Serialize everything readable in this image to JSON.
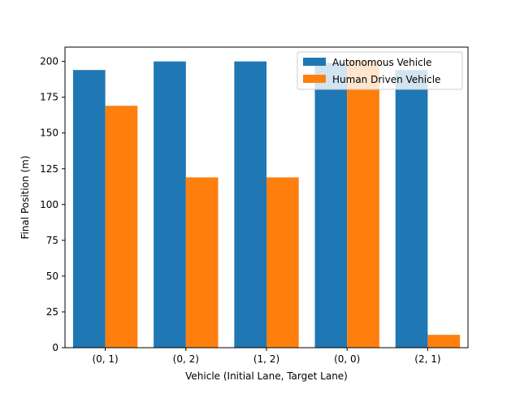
{
  "chart_data": {
    "type": "bar",
    "title": "",
    "xlabel": "Vehicle (Initial Lane, Target Lane)",
    "ylabel": "Final Position (m)",
    "categories": [
      "(0, 1)",
      "(0, 2)",
      "(1, 2)",
      "(0, 0)",
      "(2, 1)"
    ],
    "series": [
      {
        "name": "Autonomous Vehicle",
        "color": "#1f77b4",
        "values": [
          194,
          200,
          200,
          199,
          194
        ]
      },
      {
        "name": "Human Driven Vehicle",
        "color": "#ff7f0e",
        "values": [
          169,
          119,
          119,
          201,
          9
        ]
      }
    ],
    "ylim": [
      0,
      210
    ],
    "yticks": [
      0,
      25,
      50,
      75,
      100,
      125,
      150,
      175,
      200
    ],
    "grid": false,
    "legend": "top-right"
  }
}
